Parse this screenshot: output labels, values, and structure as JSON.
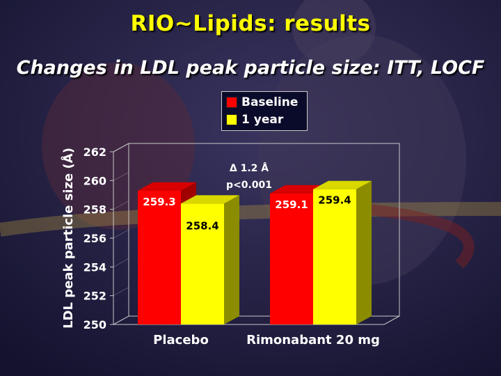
{
  "title": "RIO~Lipids: results",
  "subtitle": "Changes in LDL peak particle size: ITT, LOCF",
  "colors": {
    "baseline": "#ff0000",
    "one_year": "#ffff00",
    "text_title": "#ffff00",
    "background": "#1e1a40"
  },
  "legend": {
    "items": [
      {
        "label": "Baseline"
      },
      {
        "label": "1 year"
      }
    ]
  },
  "annotation": {
    "line1": "Δ 1.2 Å",
    "line2": "p<0.001"
  },
  "chart_data": {
    "type": "bar",
    "categories": [
      "Placebo",
      "Rimonabant 20 mg"
    ],
    "series": [
      {
        "name": "Baseline",
        "values": [
          259.3,
          259.1
        ]
      },
      {
        "name": "1 year",
        "values": [
          258.4,
          259.4
        ]
      }
    ],
    "data_labels": [
      [
        "259.3",
        "258.4"
      ],
      [
        "259.1",
        "259.4"
      ]
    ],
    "ylabel": "LDL peak particle size (Å)",
    "xlabel": "",
    "ylim": [
      250,
      262
    ],
    "yticks": [
      "250",
      "252",
      "254",
      "256",
      "258",
      "260",
      "262"
    ],
    "legend_position": "top-center",
    "grid": false
  }
}
